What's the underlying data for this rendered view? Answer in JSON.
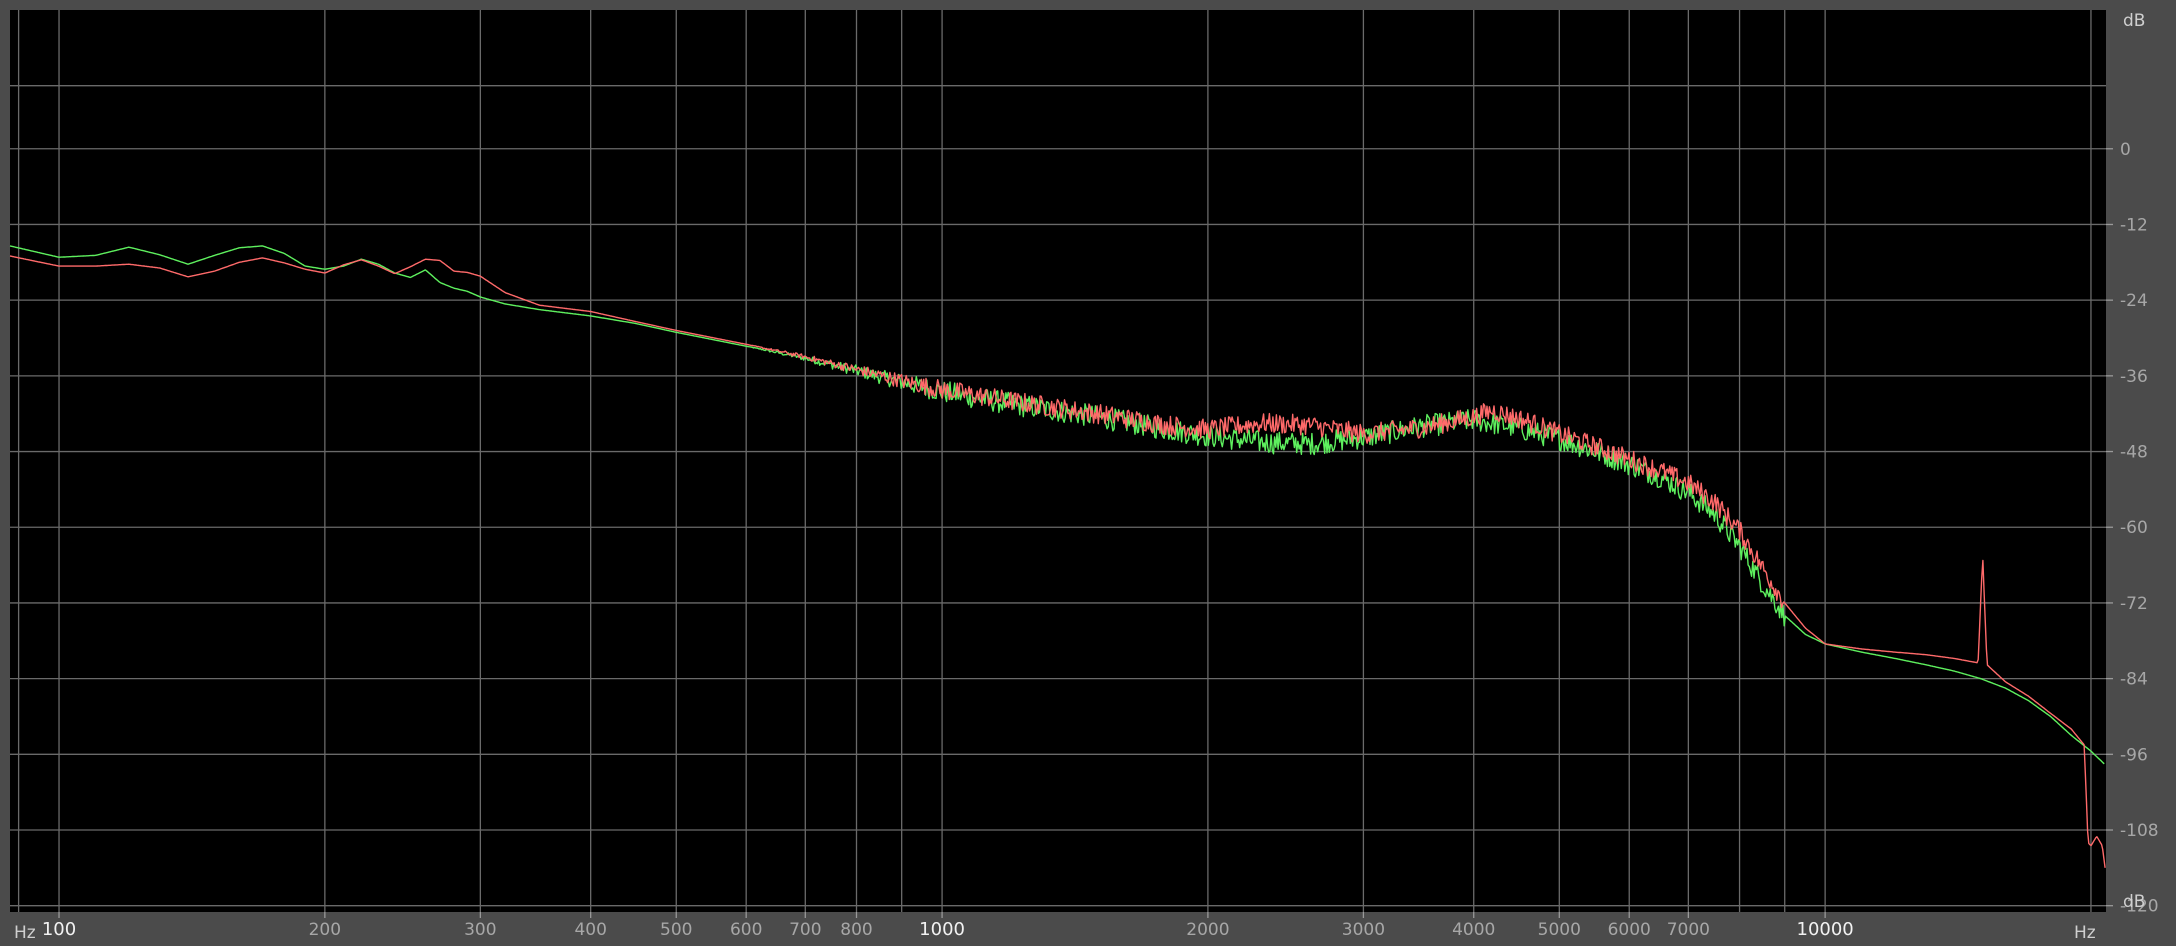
{
  "chart_data": {
    "type": "line",
    "title": "",
    "xlabel": "Hz",
    "ylabel": "dB",
    "xscale": "log",
    "xlim": [
      88,
      20800
    ],
    "ylim": [
      -121,
      22
    ],
    "grid": true,
    "background_color": "#000000",
    "grid_color": "#6a6a6a",
    "x_major_ticks": [
      {
        "value": 100,
        "label": "100"
      },
      {
        "value": 1000,
        "label": "1000"
      },
      {
        "value": 10000,
        "label": "10000"
      }
    ],
    "x_minor_ticks": [
      {
        "value": 200,
        "label": "200"
      },
      {
        "value": 300,
        "label": "300"
      },
      {
        "value": 400,
        "label": "400"
      },
      {
        "value": 500,
        "label": "500"
      },
      {
        "value": 600,
        "label": "600"
      },
      {
        "value": 700,
        "label": "700"
      },
      {
        "value": 800,
        "label": "800"
      },
      {
        "value": 2000,
        "label": "2000"
      },
      {
        "value": 3000,
        "label": "3000"
      },
      {
        "value": 4000,
        "label": "4000"
      },
      {
        "value": 5000,
        "label": "5000"
      },
      {
        "value": 6000,
        "label": "6000"
      },
      {
        "value": 7000,
        "label": "7000"
      }
    ],
    "x_unlabeled_gridlines": [
      90,
      900,
      8000,
      9000,
      20000
    ],
    "x_axis_unit_left": "Hz",
    "x_axis_unit_right": "Hz",
    "y_ticks": [
      {
        "value": 0,
        "label": "0"
      },
      {
        "value": -12,
        "label": "-12"
      },
      {
        "value": -24,
        "label": "-24"
      },
      {
        "value": -36,
        "label": "-36"
      },
      {
        "value": -48,
        "label": "-48"
      },
      {
        "value": -60,
        "label": "-60"
      },
      {
        "value": -72,
        "label": "-72"
      },
      {
        "value": -84,
        "label": "-84"
      },
      {
        "value": -96,
        "label": "-96"
      },
      {
        "value": -108,
        "label": "-108"
      },
      {
        "value": -120,
        "label": "-120"
      }
    ],
    "y_unlabeled_gridlines": [
      10
    ],
    "y_axis_unit_top": "dB",
    "y_axis_unit_bottom": "dB",
    "series": [
      {
        "color": "#5ef05e",
        "ripple": 1.8,
        "points": [
          [
            88,
            -15.4
          ],
          [
            100,
            -17.2
          ],
          [
            110,
            -16.9
          ],
          [
            120,
            -15.6
          ],
          [
            130,
            -16.8
          ],
          [
            140,
            -18.3
          ],
          [
            150,
            -16.9
          ],
          [
            160,
            -15.7
          ],
          [
            170,
            -15.4
          ],
          [
            180,
            -16.6
          ],
          [
            190,
            -18.6
          ],
          [
            200,
            -19.1
          ],
          [
            210,
            -18.6
          ],
          [
            220,
            -17.5
          ],
          [
            230,
            -18.3
          ],
          [
            240,
            -19.7
          ],
          [
            250,
            -20.4
          ],
          [
            260,
            -19.2
          ],
          [
            270,
            -21.2
          ],
          [
            280,
            -22.1
          ],
          [
            290,
            -22.6
          ],
          [
            300,
            -23.5
          ],
          [
            320,
            -24.6
          ],
          [
            350,
            -25.5
          ],
          [
            400,
            -26.5
          ],
          [
            450,
            -27.7
          ],
          [
            500,
            -29.1
          ],
          [
            600,
            -31.3
          ],
          [
            700,
            -33.2
          ],
          [
            800,
            -35.2
          ],
          [
            900,
            -37.0
          ],
          [
            1000,
            -38.5
          ],
          [
            1200,
            -40.5
          ],
          [
            1500,
            -42.5
          ],
          [
            1800,
            -44.5
          ],
          [
            2000,
            -45.5
          ],
          [
            2300,
            -46.5
          ],
          [
            2600,
            -46.8
          ],
          [
            3000,
            -45.8
          ],
          [
            3500,
            -44.0
          ],
          [
            4000,
            -43.0
          ],
          [
            4400,
            -44.0
          ],
          [
            5000,
            -46.0
          ],
          [
            5500,
            -48.0
          ],
          [
            6000,
            -50.0
          ],
          [
            6500,
            -52.0
          ],
          [
            7000,
            -54.5
          ],
          [
            7500,
            -58.0
          ],
          [
            8000,
            -63.0
          ],
          [
            8500,
            -69.0
          ],
          [
            9000,
            -74.0
          ],
          [
            9500,
            -77.0
          ],
          [
            10000,
            -78.5
          ],
          [
            11000,
            -79.8
          ],
          [
            12000,
            -80.8
          ],
          [
            13000,
            -81.8
          ],
          [
            14000,
            -82.8
          ],
          [
            15000,
            -84.0
          ],
          [
            16000,
            -85.5
          ],
          [
            17000,
            -87.5
          ],
          [
            18000,
            -90.0
          ],
          [
            19000,
            -93.0
          ],
          [
            20000,
            -95.5
          ],
          [
            20700,
            -97.5
          ]
        ]
      },
      {
        "color": "#ff6a6a",
        "ripple": 1.6,
        "points": [
          [
            88,
            -17.0
          ],
          [
            100,
            -18.6
          ],
          [
            110,
            -18.6
          ],
          [
            120,
            -18.3
          ],
          [
            130,
            -18.9
          ],
          [
            140,
            -20.3
          ],
          [
            150,
            -19.4
          ],
          [
            160,
            -18.0
          ],
          [
            170,
            -17.3
          ],
          [
            180,
            -18.1
          ],
          [
            190,
            -19.1
          ],
          [
            200,
            -19.7
          ],
          [
            210,
            -18.4
          ],
          [
            220,
            -17.6
          ],
          [
            230,
            -18.6
          ],
          [
            240,
            -19.8
          ],
          [
            250,
            -18.7
          ],
          [
            260,
            -17.5
          ],
          [
            270,
            -17.7
          ],
          [
            280,
            -19.4
          ],
          [
            290,
            -19.6
          ],
          [
            300,
            -20.2
          ],
          [
            320,
            -22.8
          ],
          [
            350,
            -24.8
          ],
          [
            400,
            -25.8
          ],
          [
            450,
            -27.4
          ],
          [
            500,
            -28.8
          ],
          [
            600,
            -31.0
          ],
          [
            700,
            -33.0
          ],
          [
            800,
            -35.0
          ],
          [
            900,
            -36.8
          ],
          [
            1000,
            -38.2
          ],
          [
            1200,
            -40.0
          ],
          [
            1500,
            -42.0
          ],
          [
            1800,
            -43.8
          ],
          [
            2000,
            -44.5
          ],
          [
            2300,
            -43.5
          ],
          [
            2600,
            -43.8
          ],
          [
            3000,
            -45.2
          ],
          [
            3500,
            -44.2
          ],
          [
            4000,
            -42.5
          ],
          [
            4200,
            -41.5
          ],
          [
            4600,
            -43.2
          ],
          [
            5000,
            -45.2
          ],
          [
            5500,
            -47.2
          ],
          [
            6000,
            -49.2
          ],
          [
            6500,
            -51.0
          ],
          [
            7000,
            -53.0
          ],
          [
            7500,
            -56.0
          ],
          [
            8000,
            -60.5
          ],
          [
            8500,
            -66.5
          ],
          [
            9000,
            -72.0
          ],
          [
            9500,
            -76.0
          ],
          [
            10000,
            -78.5
          ],
          [
            11000,
            -79.3
          ],
          [
            12000,
            -79.8
          ],
          [
            13000,
            -80.2
          ],
          [
            14000,
            -80.8
          ],
          [
            14900,
            -81.5
          ],
          [
            15080,
            -64.5
          ],
          [
            15250,
            -81.8
          ],
          [
            16000,
            -84.5
          ],
          [
            17000,
            -86.8
          ],
          [
            18000,
            -89.5
          ],
          [
            19000,
            -92.0
          ],
          [
            19650,
            -94.5
          ],
          [
            19850,
            -110.0
          ],
          [
            20000,
            -110.5
          ],
          [
            20300,
            -109.0
          ],
          [
            20600,
            -110.5
          ],
          [
            20750,
            -114.0
          ]
        ]
      }
    ]
  }
}
